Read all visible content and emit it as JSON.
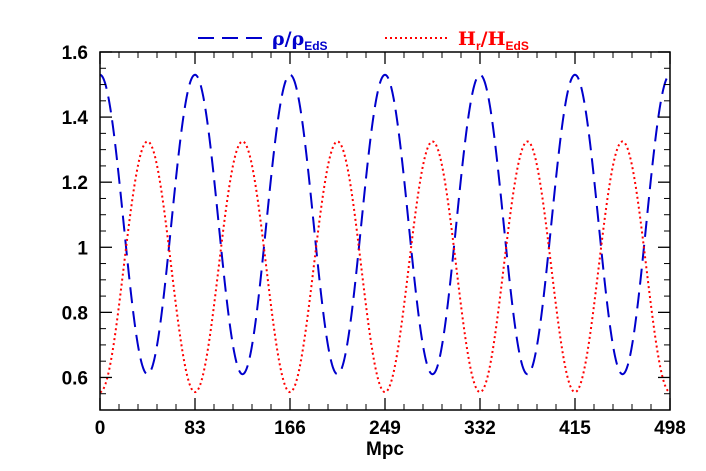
{
  "chart_data": {
    "type": "line",
    "title": "",
    "xlabel": "Mpc",
    "ylabel": "",
    "xlim": [
      0,
      498
    ],
    "ylim": [
      0.5,
      1.6
    ],
    "x_ticks": [
      {
        "value": 0,
        "label": "0"
      },
      {
        "value": 83,
        "label": "83"
      },
      {
        "value": 166,
        "label": "166"
      },
      {
        "value": 249,
        "label": "249"
      },
      {
        "value": 332,
        "label": "332"
      },
      {
        "value": 415,
        "label": "415"
      },
      {
        "value": 498,
        "label": "498"
      }
    ],
    "y_ticks": [
      {
        "value": 0.6,
        "label": "0.6"
      },
      {
        "value": 0.8,
        "label": "0.8"
      },
      {
        "value": 1.0,
        "label": "1"
      },
      {
        "value": 1.2,
        "label": "1.2"
      },
      {
        "value": 1.4,
        "label": "1.4"
      },
      {
        "value": 1.6,
        "label": "1.6"
      }
    ],
    "grid": false,
    "legend_position": "top",
    "series": [
      {
        "legend_main": "ρ/ρ",
        "legend_sub": "EdS",
        "color": "#0000cc",
        "style": "dashed",
        "period": 83,
        "phase": 0,
        "center": 1.07,
        "amplitude": 0.46
      },
      {
        "legend_main": "H",
        "legend_mid": "r",
        "legend_slash": "/H",
        "legend_sub": "EdS",
        "color": "#ff0000",
        "style": "dotted",
        "period": 83,
        "phase": 0,
        "center": 0.94,
        "amplitude": -0.385
      }
    ]
  }
}
